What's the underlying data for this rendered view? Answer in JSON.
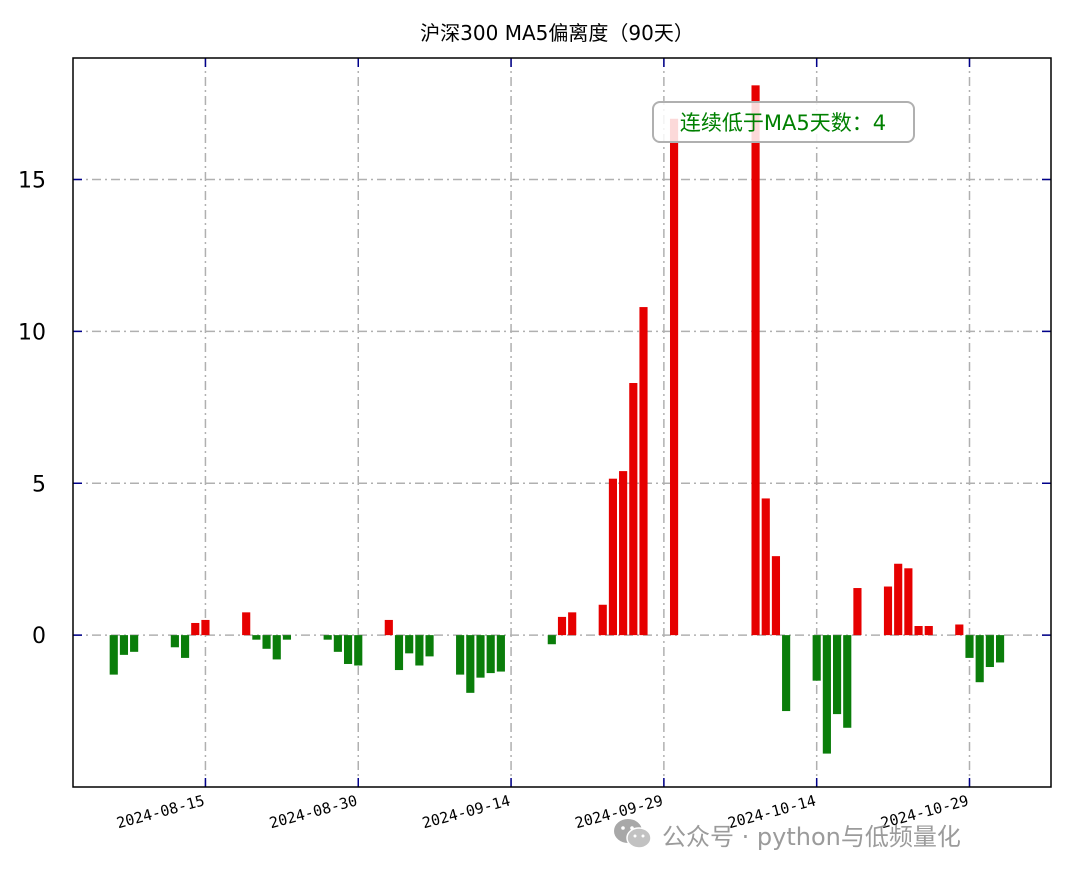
{
  "chart_data": {
    "type": "bar",
    "title": "沪深300 MA5偏离度（90天）",
    "xlabel": "",
    "ylabel": "",
    "ylim": [
      -5,
      19
    ],
    "yticks": [
      0,
      5,
      10,
      15
    ],
    "xticks": [
      "2024-08-15",
      "2024-08-30",
      "2024-09-14",
      "2024-09-29",
      "2024-10-14",
      "2024-10-29"
    ],
    "xlim": [
      "2024-08-02",
      "2024-11-06"
    ],
    "grid": true,
    "colors": {
      "positive": "#e60000",
      "negative": "#0a7d0a",
      "annotation": "#008000",
      "tick": "#00008b"
    },
    "annotation": "连续低于MA5天数：4",
    "x": [
      "2024-08-06",
      "2024-08-07",
      "2024-08-08",
      "2024-08-12",
      "2024-08-13",
      "2024-08-14",
      "2024-08-15",
      "2024-08-19",
      "2024-08-20",
      "2024-08-21",
      "2024-08-22",
      "2024-08-23",
      "2024-08-27",
      "2024-08-28",
      "2024-08-29",
      "2024-08-30",
      "2024-09-02",
      "2024-09-03",
      "2024-09-04",
      "2024-09-05",
      "2024-09-06",
      "2024-09-09",
      "2024-09-10",
      "2024-09-11",
      "2024-09-12",
      "2024-09-13",
      "2024-09-18",
      "2024-09-19",
      "2024-09-20",
      "2024-09-23",
      "2024-09-24",
      "2024-09-25",
      "2024-09-26",
      "2024-09-27",
      "2024-09-30",
      "2024-10-08",
      "2024-10-09",
      "2024-10-10",
      "2024-10-11",
      "2024-10-14",
      "2024-10-15",
      "2024-10-16",
      "2024-10-17",
      "2024-10-18",
      "2024-10-21",
      "2024-10-22",
      "2024-10-23",
      "2024-10-24",
      "2024-10-25",
      "2024-10-28",
      "2024-10-29",
      "2024-10-30",
      "2024-10-31",
      "2024-11-01"
    ],
    "values": [
      -1.3,
      -0.65,
      -0.55,
      -0.4,
      -0.75,
      0.4,
      0.5,
      0.75,
      -0.15,
      -0.45,
      -0.8,
      -0.15,
      -0.15,
      -0.55,
      -0.95,
      -1.0,
      0.5,
      -1.15,
      -0.6,
      -1.0,
      -0.7,
      -1.3,
      -1.9,
      -1.4,
      -1.25,
      -1.2,
      -0.3,
      0.6,
      0.75,
      1.0,
      5.15,
      5.4,
      8.3,
      10.8,
      17.0,
      18.1,
      4.5,
      2.6,
      -2.5,
      -1.5,
      -3.9,
      -2.6,
      -3.05,
      1.55,
      1.6,
      2.35,
      2.2,
      0.3,
      0.3,
      0.35,
      -0.75,
      -1.55,
      -1.05,
      -0.9
    ]
  },
  "watermark": {
    "icon": "wechat-icon",
    "text": "公众号 · python与低频量化"
  }
}
